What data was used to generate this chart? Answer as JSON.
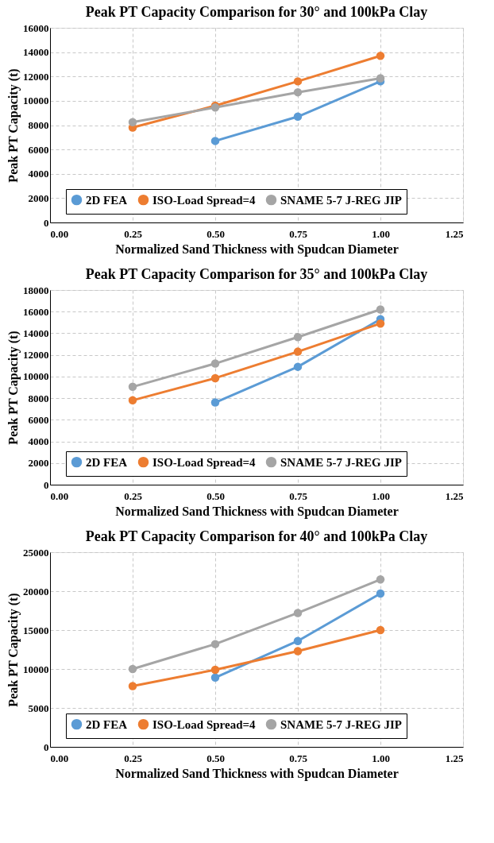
{
  "chart_data": [
    {
      "type": "line",
      "title": "Peak PT Capacity Comparison for 30° and 100kPa Clay",
      "xlabel": "Normalized  Sand Thickness  with Spudcan Diameter",
      "ylabel": "Peak PT Capacity (t)",
      "x": [
        0.25,
        0.5,
        0.75,
        1.0
      ],
      "series": [
        {
          "name": "2D FEA",
          "color": "#5b9bd5",
          "values": [
            null,
            6700,
            8700,
            11600
          ]
        },
        {
          "name": "ISO-Load Spread=4",
          "color": "#ed7d31",
          "values": [
            7800,
            9600,
            11600,
            13700
          ]
        },
        {
          "name": "SNAME 5-7 J-REG JIP",
          "color": "#a5a5a5",
          "values": [
            8250,
            9450,
            10700,
            11850
          ]
        }
      ],
      "xlim": [
        0,
        1.25
      ],
      "xticks": [
        {
          "value": 0,
          "label": "0.00"
        },
        {
          "value": 0.25,
          "label": "0.25"
        },
        {
          "value": 0.5,
          "label": "0.50"
        },
        {
          "value": 0.75,
          "label": "0.75"
        },
        {
          "value": 1.0,
          "label": "1.00"
        },
        {
          "value": 1.25,
          "label": "1.25"
        }
      ],
      "ylim": [
        0,
        16000
      ],
      "yticks": [
        0,
        2000,
        4000,
        6000,
        8000,
        10000,
        12000,
        14000,
        16000
      ],
      "grid": true,
      "legend": "bottom",
      "marker": "circle",
      "line_style": "solid"
    },
    {
      "type": "line",
      "title": "Peak PT Capacity Comparison for 35° and 100kPa Clay",
      "xlabel": "Normalized  Sand Thickness  with Spudcan Diameter",
      "ylabel": "Peak PT Capacity (t)",
      "x": [
        0.25,
        0.5,
        0.75,
        1.0
      ],
      "series": [
        {
          "name": "2D FEA",
          "color": "#5b9bd5",
          "values": [
            null,
            7600,
            10900,
            15300
          ]
        },
        {
          "name": "ISO-Load Spread=4",
          "color": "#ed7d31",
          "values": [
            7800,
            9850,
            12300,
            14900
          ]
        },
        {
          "name": "SNAME 5-7 J-REG JIP",
          "color": "#a5a5a5",
          "values": [
            9050,
            11200,
            13650,
            16200
          ]
        }
      ],
      "xlim": [
        0,
        1.25
      ],
      "xticks": [
        {
          "value": 0,
          "label": "0.00"
        },
        {
          "value": 0.25,
          "label": "0.25"
        },
        {
          "value": 0.5,
          "label": "0.50"
        },
        {
          "value": 0.75,
          "label": "0.75"
        },
        {
          "value": 1.0,
          "label": "1.00"
        },
        {
          "value": 1.25,
          "label": "1.25"
        }
      ],
      "ylim": [
        0,
        18000
      ],
      "yticks": [
        0,
        2000,
        4000,
        6000,
        8000,
        10000,
        12000,
        14000,
        16000,
        18000
      ],
      "grid": true,
      "legend": "bottom",
      "marker": "circle",
      "line_style": "solid"
    },
    {
      "type": "line",
      "title": "Peak PT Capacity Comparison for 40° and 100kPa Clay",
      "xlabel": "Normalized  Sand Thickness  with Spudcan Diameter",
      "ylabel": "Peak PT Capacity (t)",
      "x": [
        0.25,
        0.5,
        0.75,
        1.0
      ],
      "series": [
        {
          "name": "2D FEA",
          "color": "#5b9bd5",
          "values": [
            null,
            8900,
            13600,
            19700
          ]
        },
        {
          "name": "ISO-Load Spread=4",
          "color": "#ed7d31",
          "values": [
            7800,
            9900,
            12300,
            15000
          ]
        },
        {
          "name": "SNAME 5-7 J-REG JIP",
          "color": "#a5a5a5",
          "values": [
            10000,
            13200,
            17200,
            21500
          ]
        }
      ],
      "xlim": [
        0,
        1.25
      ],
      "xticks": [
        {
          "value": 0,
          "label": "0.00"
        },
        {
          "value": 0.25,
          "label": "0.25"
        },
        {
          "value": 0.5,
          "label": "0.50"
        },
        {
          "value": 0.75,
          "label": "0.75"
        },
        {
          "value": 1.0,
          "label": "1.00"
        },
        {
          "value": 1.25,
          "label": "1.25"
        }
      ],
      "ylim": [
        0,
        25000
      ],
      "yticks": [
        0,
        5000,
        10000,
        15000,
        20000,
        25000
      ],
      "grid": true,
      "legend": "bottom",
      "marker": "circle",
      "line_style": "solid"
    }
  ]
}
